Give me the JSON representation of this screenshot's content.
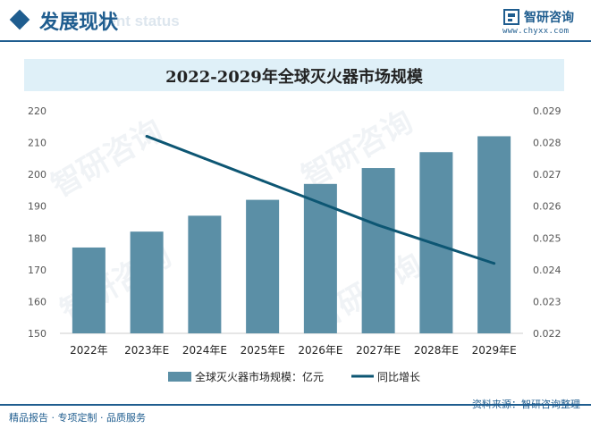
{
  "header": {
    "title": "发展现状",
    "title_en": "nent status",
    "brand_name": "智研咨询",
    "brand_url": "www.chyxx.com"
  },
  "watermark": "智研咨询",
  "footer": {
    "tagline": "精品报告 · 专项定制 · 品质服务",
    "source": "资料来源：智研咨询整理"
  },
  "colors": {
    "bar": "#5b8fa6",
    "line": "#0d5673",
    "accent": "#1f5d8f",
    "title_band": "#dff0f8"
  },
  "chart_data": {
    "type": "bar",
    "title": "2022-2029年全球灭火器市场规模",
    "categories": [
      "2022年",
      "2023年E",
      "2024年E",
      "2025年E",
      "2026年E",
      "2027年E",
      "2028年E",
      "2029年E"
    ],
    "series": [
      {
        "name": "全球灭火器市场规模：亿元",
        "type": "bar",
        "axis": "left",
        "values": [
          177,
          182,
          187,
          192,
          197,
          202,
          207,
          212
        ]
      },
      {
        "name": "同比增长",
        "type": "line",
        "axis": "right",
        "values": [
          null,
          0.0282,
          0.0275,
          0.0268,
          0.0261,
          0.0254,
          0.0248,
          0.0242
        ]
      }
    ],
    "y_left": {
      "min": 150,
      "max": 220,
      "ticks": [
        "150",
        "160",
        "170",
        "180",
        "190",
        "200",
        "210",
        "220"
      ]
    },
    "y_right": {
      "min": 0.022,
      "max": 0.029,
      "ticks": [
        "0.022",
        "0.023",
        "0.024",
        "0.025",
        "0.026",
        "0.027",
        "0.028",
        "0.029"
      ]
    },
    "legend_position": "bottom",
    "grid": false
  }
}
